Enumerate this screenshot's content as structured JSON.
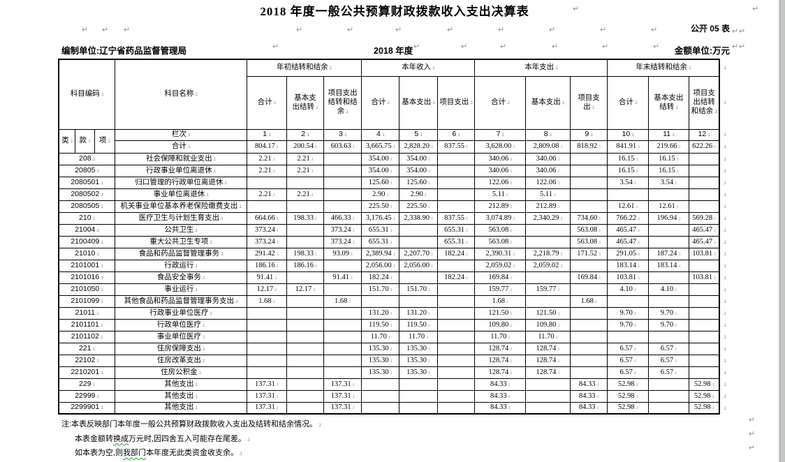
{
  "page": {
    "title": "2018 年度一般公共预算财政拨款收入支出决算表",
    "doc_label": "公开 05 表",
    "prepared_by_label": "编制单位:",
    "prepared_by": "辽宁省药品监督管理局",
    "period": "2018 年度",
    "unit_label": "金额单位:万元"
  },
  "marks": {
    "pilcrow": "↵",
    "cell_end": ".1"
  },
  "table": {
    "header": {
      "subject_code": "科目编码",
      "subject_name": "科目名称",
      "groups": [
        {
          "label": "年初结转和结余",
          "cols": [
            "合计",
            "基本支\n出结转",
            "项目支出\n结转和结\n余"
          ]
        },
        {
          "label": "本年收入",
          "cols": [
            "合计",
            "基本支出",
            "项目支出"
          ]
        },
        {
          "label": "本年支出",
          "cols": [
            "合计",
            "基本支出",
            "项目支\n出"
          ]
        },
        {
          "label": "年末结转和结余",
          "cols": [
            "合计",
            "基本支出\n结转",
            "项目支\n出结转\n和结余"
          ]
        }
      ],
      "code_cols": [
        "类",
        "款",
        "项"
      ],
      "row_label": "栏次",
      "col_numbers": [
        "1",
        "2",
        "3",
        "4",
        "5",
        "6",
        "7",
        "8",
        "9",
        "10",
        "11",
        "12"
      ]
    },
    "total_row": {
      "name": "合计",
      "values": [
        "804.17",
        "200.54",
        "603.63",
        "3,665.75",
        "2,828.20",
        "837.55",
        "3,628.00",
        "2,809.08",
        "818.92",
        "841.91",
        "219.66",
        "622.26"
      ]
    },
    "rows": [
      {
        "code": "208",
        "name": "社会保障和就业支出",
        "values": [
          "2.21",
          "2.21",
          "",
          "354.00",
          "354.00",
          "",
          "340.06",
          "340.06",
          "",
          "16.15",
          "16.15",
          ""
        ]
      },
      {
        "code": "20805",
        "name": "行政事业单位离退休",
        "values": [
          "2.21",
          "2.21",
          "",
          "354.00",
          "354.00",
          "",
          "340.06",
          "340.06",
          "",
          "16.15",
          "16.15",
          ""
        ]
      },
      {
        "code": "2080501",
        "name": "归口管理的行政单位离退休",
        "values": [
          "",
          "",
          "",
          "125.60",
          "125.60",
          "",
          "122.06",
          "122.06",
          "",
          "3.54",
          "3.54",
          ""
        ]
      },
      {
        "code": "2080502",
        "name": "事业单位离退休",
        "values": [
          "2.21",
          "2.21",
          "",
          "2.90",
          "2.90",
          "",
          "5.11",
          "5.11",
          "",
          "",
          "",
          ""
        ]
      },
      {
        "code": "2080505",
        "name": "机关事业单位基本养老保险缴费支出",
        "values": [
          "",
          "",
          "",
          "225.50",
          "225.50",
          "",
          "212.89",
          "212.89",
          "",
          "12.61",
          "12.61",
          ""
        ]
      },
      {
        "code": "210",
        "name": "医疗卫生与计划生育支出",
        "values": [
          "664.66",
          "198.33",
          "466.33",
          "3,176.45",
          "2,338.90",
          "837.55",
          "3,074.89",
          "2,340.29",
          "734.60",
          "766.22",
          "196.94",
          "569.28"
        ]
      },
      {
        "code": "21004",
        "name": "公共卫生",
        "values": [
          "373.24",
          "",
          "373.24",
          "655.31",
          "",
          "655.31",
          "563.08",
          "",
          "563.08",
          "465.47",
          "",
          "465.47"
        ]
      },
      {
        "code": "2100409",
        "name": "重大公共卫生专项",
        "values": [
          "373.24",
          "",
          "373.24",
          "655.31",
          "",
          "655.31",
          "563.08",
          "",
          "563.08",
          "465.47",
          "",
          "465.47"
        ]
      },
      {
        "code": "21010",
        "name": "食品和药品监督管理事务",
        "values": [
          "291.42",
          "198.33",
          "93.09",
          "2,389.94",
          "2,207.70",
          "182.24",
          "2,390.31",
          "2,218.79",
          "171.52",
          "291.05",
          "187.24",
          "103.81"
        ]
      },
      {
        "code": "2101001",
        "name": "行政运行",
        "values": [
          "186.16",
          "186.16",
          "",
          "2,056.00",
          "2,056.00",
          "",
          "2,059.02",
          "2,059.02",
          "",
          "183.14",
          "183.14",
          ""
        ]
      },
      {
        "code": "2101016",
        "name": "食品安全事务",
        "values": [
          "91.41",
          "",
          "91.41",
          "182.24",
          "",
          "182.24",
          "169.84",
          "",
          "169.84",
          "103.81",
          "",
          "103.81"
        ]
      },
      {
        "code": "2101050",
        "name": "事业运行",
        "values": [
          "12.17",
          "12.17",
          "",
          "151.70",
          "151.70",
          "",
          "159.77",
          "159.77",
          "",
          "4.10",
          "4.10",
          ""
        ]
      },
      {
        "code": "2101099",
        "name": "其他食品和药品监督管理事务支出",
        "values": [
          "1.68",
          "",
          "1.68",
          "",
          "",
          "",
          "1.68",
          "",
          "1.68",
          "",
          "",
          ""
        ]
      },
      {
        "code": "21011",
        "name": "行政事业单位医疗",
        "values": [
          "",
          "",
          "",
          "131.20",
          "131.20",
          "",
          "121.50",
          "121.50",
          "",
          "9.70",
          "9.70",
          ""
        ]
      },
      {
        "code": "2101101",
        "name": "行政单位医疗",
        "values": [
          "",
          "",
          "",
          "119.50",
          "119.50",
          "",
          "109.80",
          "109.80",
          "",
          "9.70",
          "9.70",
          ""
        ]
      },
      {
        "code": "2101102",
        "name": "事业单位医疗",
        "values": [
          "",
          "",
          "",
          "11.70",
          "11.70",
          "",
          "11.70",
          "11.70",
          "",
          "",
          "",
          ""
        ]
      },
      {
        "code": "221",
        "name": "住房保障支出",
        "values": [
          "",
          "",
          "",
          "135.30",
          "135.30",
          "",
          "128.74",
          "128.74",
          "",
          "6.57",
          "6.57",
          ""
        ]
      },
      {
        "code": "22102",
        "name": "住房改革支出",
        "values": [
          "",
          "",
          "",
          "135.30",
          "135.30",
          "",
          "128.74",
          "128.74",
          "",
          "6.57",
          "6.57",
          ""
        ]
      },
      {
        "code": "2210201",
        "name": "住房公积金",
        "values": [
          "",
          "",
          "",
          "135.30",
          "135.30",
          "",
          "128.74",
          "128.74",
          "",
          "6.57",
          "6.57",
          ""
        ]
      },
      {
        "code": "229",
        "name": "其他支出",
        "values": [
          "137.31",
          "",
          "137.31",
          "",
          "",
          "",
          "84.33",
          "",
          "84.33",
          "52.98",
          "",
          "52.98"
        ]
      },
      {
        "code": "22999",
        "name": "其他支出",
        "values": [
          "137.31",
          "",
          "137.31",
          "",
          "",
          "",
          "84.33",
          "",
          "84.33",
          "52.98",
          "",
          "52.98"
        ]
      },
      {
        "code": "2299901",
        "name": "其他支出",
        "values": [
          "137.31",
          "",
          "137.31",
          "",
          "",
          "",
          "84.33",
          "",
          "84.33",
          "52.98",
          "",
          "52.98"
        ]
      }
    ]
  },
  "notes": [
    [
      {
        "t": "注:本表反映部门本年度一般公共预算财政拨款收入支出及结转和结余情况。"
      }
    ],
    [
      {
        "t": "本表金额转"
      },
      {
        "t": "换成",
        "wavy": true
      },
      {
        "t": "万元时,因四舍五入可能存在尾差。"
      }
    ],
    [
      {
        "t": "如本表为空,则"
      },
      {
        "t": "我部门",
        "wavy": true
      },
      {
        "t": "本年度无此类资金收支余。"
      }
    ]
  ]
}
